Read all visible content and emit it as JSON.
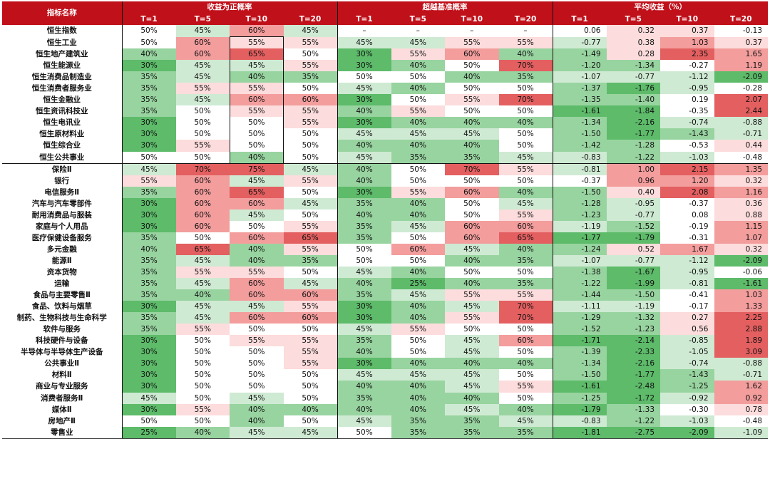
{
  "headers": {
    "name": "指标名称",
    "groups": [
      "收益为正概率",
      "超越基准概率",
      "平均收益（%）"
    ],
    "sub": [
      "T=1",
      "T=5",
      "T=10",
      "T=20"
    ]
  },
  "separator_after_row": 12,
  "colors": {
    "header": "#c0101a",
    "red_strong": "#e35f60",
    "red_mid": "#f39d9d",
    "red_light": "#fcdcdc",
    "green_strong": "#5dbb6a",
    "green_mid": "#98d4a0",
    "green_light": "#cfead3",
    "neutral": "#ffffff"
  },
  "rows": [
    {
      "name": "恒生指数",
      "p": [
        "50%",
        "45%",
        "60%",
        "45%"
      ],
      "b": [
        "–",
        "–",
        "–",
        "–"
      ],
      "r": [
        "0.06",
        "0.32",
        "0.37",
        "-0.13"
      ]
    },
    {
      "name": "恒生工业",
      "p": [
        "50%",
        "60%",
        "55%",
        "55%"
      ],
      "b": [
        "45%",
        "45%",
        "55%",
        "55%"
      ],
      "r": [
        "-0.77",
        "0.38",
        "1.03",
        "0.37"
      ]
    },
    {
      "name": "恒生地产建筑业",
      "p": [
        "40%",
        "60%",
        "65%",
        "50%"
      ],
      "b": [
        "30%",
        "55%",
        "60%",
        "40%"
      ],
      "r": [
        "-1.49",
        "0.28",
        "2.35",
        "1.65"
      ]
    },
    {
      "name": "恒生能源业",
      "p": [
        "30%",
        "45%",
        "45%",
        "55%"
      ],
      "b": [
        "30%",
        "40%",
        "50%",
        "70%"
      ],
      "r": [
        "-1.20",
        "-1.34",
        "-0.27",
        "1.19"
      ]
    },
    {
      "name": "恒生消费品制造业",
      "p": [
        "35%",
        "45%",
        "40%",
        "35%"
      ],
      "b": [
        "50%",
        "50%",
        "40%",
        "35%"
      ],
      "r": [
        "-1.07",
        "-0.77",
        "-1.12",
        "-2.09"
      ]
    },
    {
      "name": "恒生消费者服务业",
      "p": [
        "35%",
        "55%",
        "55%",
        "50%"
      ],
      "b": [
        "45%",
        "40%",
        "50%",
        "50%"
      ],
      "r": [
        "-1.37",
        "-1.76",
        "-0.95",
        "-0.28"
      ]
    },
    {
      "name": "恒生金融业",
      "p": [
        "35%",
        "45%",
        "60%",
        "60%"
      ],
      "b": [
        "30%",
        "50%",
        "55%",
        "70%"
      ],
      "r": [
        "-1.35",
        "-1.40",
        "0.19",
        "2.07"
      ]
    },
    {
      "name": "恒生资讯科技业",
      "p": [
        "35%",
        "50%",
        "55%",
        "55%"
      ],
      "b": [
        "40%",
        "55%",
        "50%",
        "50%"
      ],
      "r": [
        "-1.61",
        "-1.84",
        "-0.35",
        "2.44"
      ]
    },
    {
      "name": "恒生电讯业",
      "p": [
        "30%",
        "50%",
        "50%",
        "55%"
      ],
      "b": [
        "30%",
        "40%",
        "40%",
        "40%"
      ],
      "r": [
        "-1.34",
        "-2.16",
        "-0.74",
        "-0.88"
      ]
    },
    {
      "name": "恒生原材料业",
      "p": [
        "30%",
        "50%",
        "50%",
        "50%"
      ],
      "b": [
        "45%",
        "45%",
        "45%",
        "50%"
      ],
      "r": [
        "-1.50",
        "-1.77",
        "-1.43",
        "-0.71"
      ]
    },
    {
      "name": "恒生综合业",
      "p": [
        "30%",
        "55%",
        "50%",
        "50%"
      ],
      "b": [
        "40%",
        "40%",
        "40%",
        "50%"
      ],
      "r": [
        "-1.42",
        "-1.28",
        "-0.53",
        "0.44"
      ]
    },
    {
      "name": "恒生公共事业",
      "p": [
        "50%",
        "50%",
        "40%",
        "50%"
      ],
      "b": [
        "45%",
        "35%",
        "35%",
        "45%"
      ],
      "r": [
        "-0.83",
        "-1.22",
        "-1.03",
        "-0.48"
      ]
    },
    {
      "name": "保险Ⅱ",
      "p": [
        "45%",
        "70%",
        "75%",
        "45%"
      ],
      "b": [
        "40%",
        "50%",
        "70%",
        "55%"
      ],
      "r": [
        "-0.81",
        "1.00",
        "2.15",
        "1.35"
      ]
    },
    {
      "name": "银行",
      "p": [
        "55%",
        "60%",
        "45%",
        "55%"
      ],
      "b": [
        "40%",
        "50%",
        "50%",
        "50%"
      ],
      "r": [
        "-0.37",
        "0.96",
        "1.20",
        "0.32"
      ]
    },
    {
      "name": "电信服务Ⅱ",
      "p": [
        "35%",
        "60%",
        "65%",
        "50%"
      ],
      "b": [
        "30%",
        "55%",
        "60%",
        "40%"
      ],
      "r": [
        "-1.50",
        "0.40",
        "2.08",
        "1.16"
      ]
    },
    {
      "name": "汽车与汽车零部件",
      "p": [
        "30%",
        "60%",
        "60%",
        "45%"
      ],
      "b": [
        "35%",
        "40%",
        "50%",
        "45%"
      ],
      "r": [
        "-1.28",
        "-0.95",
        "-0.37",
        "0.36"
      ]
    },
    {
      "name": "耐用消费品与服装",
      "p": [
        "30%",
        "60%",
        "45%",
        "50%"
      ],
      "b": [
        "40%",
        "40%",
        "50%",
        "55%"
      ],
      "r": [
        "-1.23",
        "-0.77",
        "0.08",
        "0.88"
      ]
    },
    {
      "name": "家庭与个人用品",
      "p": [
        "30%",
        "60%",
        "50%",
        "55%"
      ],
      "b": [
        "35%",
        "45%",
        "60%",
        "60%"
      ],
      "r": [
        "-1.19",
        "-1.52",
        "-0.19",
        "1.15"
      ]
    },
    {
      "name": "医疗保健设备服务",
      "p": [
        "35%",
        "50%",
        "60%",
        "65%"
      ],
      "b": [
        "35%",
        "50%",
        "60%",
        "65%"
      ],
      "r": [
        "-1.77",
        "-1.79",
        "-0.31",
        "1.07"
      ]
    },
    {
      "name": "多元金融",
      "p": [
        "40%",
        "65%",
        "40%",
        "55%"
      ],
      "b": [
        "50%",
        "60%",
        "45%",
        "40%"
      ],
      "r": [
        "-1.24",
        "0.52",
        "1.67",
        "0.32"
      ]
    },
    {
      "name": "能源Ⅱ",
      "p": [
        "35%",
        "45%",
        "40%",
        "35%"
      ],
      "b": [
        "50%",
        "50%",
        "40%",
        "35%"
      ],
      "r": [
        "-1.07",
        "-0.77",
        "-1.12",
        "-2.09"
      ]
    },
    {
      "name": "资本货物",
      "p": [
        "35%",
        "55%",
        "55%",
        "50%"
      ],
      "b": [
        "45%",
        "40%",
        "50%",
        "50%"
      ],
      "r": [
        "-1.38",
        "-1.67",
        "-0.95",
        "-0.06"
      ]
    },
    {
      "name": "运输",
      "p": [
        "35%",
        "45%",
        "60%",
        "45%"
      ],
      "b": [
        "40%",
        "25%",
        "40%",
        "35%"
      ],
      "r": [
        "-1.22",
        "-1.99",
        "-0.81",
        "-1.61"
      ]
    },
    {
      "name": "食品与主要零售Ⅱ",
      "p": [
        "35%",
        "40%",
        "60%",
        "60%"
      ],
      "b": [
        "35%",
        "45%",
        "55%",
        "55%"
      ],
      "r": [
        "-1.44",
        "-1.50",
        "-0.41",
        "1.03"
      ]
    },
    {
      "name": "食品、饮料与烟草",
      "p": [
        "30%",
        "45%",
        "45%",
        "55%"
      ],
      "b": [
        "30%",
        "40%",
        "45%",
        "70%"
      ],
      "r": [
        "-1.11",
        "-1.19",
        "-0.17",
        "1.33"
      ]
    },
    {
      "name": "制药、生物科技与生命科学",
      "p": [
        "35%",
        "45%",
        "60%",
        "60%"
      ],
      "b": [
        "30%",
        "40%",
        "55%",
        "70%"
      ],
      "r": [
        "-1.29",
        "-1.32",
        "0.27",
        "2.25"
      ]
    },
    {
      "name": "软件与服务",
      "p": [
        "35%",
        "55%",
        "50%",
        "50%"
      ],
      "b": [
        "45%",
        "55%",
        "50%",
        "50%"
      ],
      "r": [
        "-1.52",
        "-1.23",
        "0.56",
        "2.88"
      ]
    },
    {
      "name": "科技硬件与设备",
      "p": [
        "30%",
        "50%",
        "55%",
        "55%"
      ],
      "b": [
        "35%",
        "50%",
        "45%",
        "60%"
      ],
      "r": [
        "-1.71",
        "-2.14",
        "-0.85",
        "1.89"
      ]
    },
    {
      "name": "半导体与半导体生产设备",
      "p": [
        "30%",
        "50%",
        "50%",
        "55%"
      ],
      "b": [
        "40%",
        "50%",
        "45%",
        "50%"
      ],
      "r": [
        "-1.39",
        "-2.33",
        "-1.05",
        "3.09"
      ]
    },
    {
      "name": "公共事业Ⅱ",
      "p": [
        "30%",
        "50%",
        "50%",
        "55%"
      ],
      "b": [
        "30%",
        "40%",
        "40%",
        "40%"
      ],
      "r": [
        "-1.34",
        "-2.16",
        "-0.74",
        "-0.88"
      ]
    },
    {
      "name": "材料Ⅱ",
      "p": [
        "30%",
        "50%",
        "50%",
        "50%"
      ],
      "b": [
        "45%",
        "45%",
        "45%",
        "50%"
      ],
      "r": [
        "-1.50",
        "-1.77",
        "-1.43",
        "-0.71"
      ]
    },
    {
      "name": "商业与专业服务",
      "p": [
        "30%",
        "50%",
        "50%",
        "50%"
      ],
      "b": [
        "40%",
        "40%",
        "45%",
        "55%"
      ],
      "r": [
        "-1.61",
        "-2.48",
        "-1.25",
        "1.62"
      ]
    },
    {
      "name": "消费者服务Ⅱ",
      "p": [
        "45%",
        "50%",
        "45%",
        "50%"
      ],
      "b": [
        "35%",
        "40%",
        "40%",
        "50%"
      ],
      "r": [
        "-1.25",
        "-1.72",
        "-0.92",
        "0.92"
      ]
    },
    {
      "name": "媒体Ⅱ",
      "p": [
        "30%",
        "55%",
        "40%",
        "40%"
      ],
      "b": [
        "40%",
        "40%",
        "45%",
        "40%"
      ],
      "r": [
        "-1.79",
        "-1.33",
        "-0.30",
        "0.78"
      ]
    },
    {
      "name": "房地产Ⅱ",
      "p": [
        "50%",
        "50%",
        "40%",
        "50%"
      ],
      "b": [
        "45%",
        "35%",
        "35%",
        "45%"
      ],
      "r": [
        "-0.83",
        "-1.22",
        "-1.03",
        "-0.48"
      ]
    },
    {
      "name": "零售业",
      "p": [
        "25%",
        "40%",
        "45%",
        "45%"
      ],
      "b": [
        "50%",
        "35%",
        "35%",
        "35%"
      ],
      "r": [
        "-1.81",
        "-2.75",
        "-2.09",
        "-1.09"
      ]
    }
  ]
}
